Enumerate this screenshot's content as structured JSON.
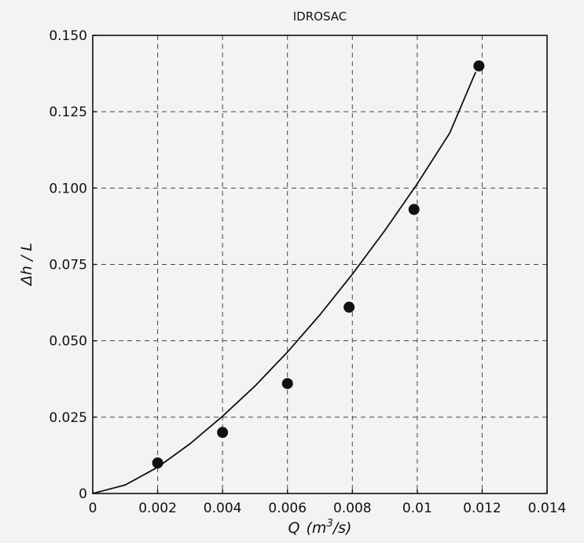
{
  "chart_data": {
    "type": "scatter",
    "title": "IDROSAC",
    "xlabel_html": "Q (m³/s)",
    "xlabel_var": "Q",
    "xlabel_unit_pre": "(m",
    "xlabel_unit_sup": "3",
    "xlabel_unit_post": "/s)",
    "ylabel": "Δh / L",
    "xlim": [
      0,
      0.014
    ],
    "ylim": [
      0,
      0.15
    ],
    "x_ticks": [
      {
        "value": 0,
        "label": "0"
      },
      {
        "value": 0.002,
        "label": "0.002"
      },
      {
        "value": 0.004,
        "label": "0.004"
      },
      {
        "value": 0.006,
        "label": "0.006"
      },
      {
        "value": 0.008,
        "label": "0.008"
      },
      {
        "value": 0.01,
        "label": "0.01"
      },
      {
        "value": 0.012,
        "label": "0.012"
      },
      {
        "value": 0.014,
        "label": "0.014"
      }
    ],
    "y_ticks": [
      {
        "value": 0,
        "label": "0"
      },
      {
        "value": 0.025,
        "label": "0.025"
      },
      {
        "value": 0.05,
        "label": "0.050"
      },
      {
        "value": 0.075,
        "label": "0.075"
      },
      {
        "value": 0.1,
        "label": "0.100"
      },
      {
        "value": 0.125,
        "label": "0.125"
      },
      {
        "value": 0.15,
        "label": "0.150"
      }
    ],
    "grid": true,
    "series": [
      {
        "kind": "points",
        "x": [
          0.002,
          0.004,
          0.006,
          0.0079,
          0.0099,
          0.0119
        ],
        "y": [
          0.01,
          0.02,
          0.036,
          0.061,
          0.093,
          0.14
        ]
      },
      {
        "kind": "curve",
        "x": [
          0,
          0.001,
          0.002,
          0.003,
          0.004,
          0.005,
          0.006,
          0.007,
          0.008,
          0.009,
          0.01,
          0.011,
          0.0118
        ],
        "y": [
          0,
          0.0028,
          0.0086,
          0.0163,
          0.0253,
          0.0352,
          0.0463,
          0.0585,
          0.0718,
          0.0861,
          0.1014,
          0.118,
          0.138
        ]
      }
    ]
  }
}
